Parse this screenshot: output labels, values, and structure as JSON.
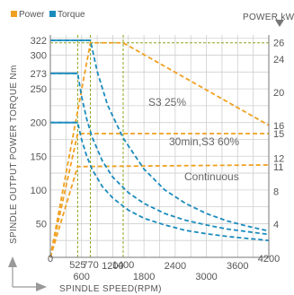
{
  "chart_data": {
    "type": "line",
    "legend": [
      {
        "name": "Power",
        "color": "#f0a020"
      },
      {
        "name": "Torque",
        "color": "#1a8bbd"
      }
    ],
    "legend_placement": "top-left",
    "xlabel": "SPINDLE SPEED(RPM)",
    "ylabel_left": "SPINDLE OUTPUT POWER TORQUE Nm",
    "ylabel_right": "POWER kW",
    "xlim": [
      0,
      4200
    ],
    "ylim_left": [
      0,
      330
    ],
    "ylim_right": [
      0,
      26.95
    ],
    "grid": true,
    "x_ticks": [
      {
        "v": 0,
        "label": "0",
        "color": "#555555"
      },
      {
        "v": 525,
        "label": "525",
        "color": "#8aa51e"
      },
      {
        "v": 600,
        "label": "600",
        "color": "#555555"
      },
      {
        "v": 770,
        "label": "770",
        "color": "#8aa51e"
      },
      {
        "v": 1200,
        "label": "1200",
        "color": "#555555"
      },
      {
        "v": 1400,
        "label": "1400",
        "color": "#8aa51e"
      },
      {
        "v": 1800,
        "label": "1800",
        "color": "#555555"
      },
      {
        "v": 2400,
        "label": "2400",
        "color": "#555555"
      },
      {
        "v": 3000,
        "label": "3000",
        "color": "#555555"
      },
      {
        "v": 3600,
        "label": "3600",
        "color": "#555555"
      },
      {
        "v": 4200,
        "label": "4200",
        "color": "#555555"
      }
    ],
    "y_ticks_left": [
      {
        "v": 50,
        "label": "50",
        "color": "#555555"
      },
      {
        "v": 100,
        "label": "100",
        "color": "#555555"
      },
      {
        "v": 150,
        "label": "150",
        "color": "#555555"
      },
      {
        "v": 200,
        "label": "200",
        "color": "#1888b8"
      },
      {
        "v": 250,
        "label": "250",
        "color": "#555555"
      },
      {
        "v": 273,
        "label": "273",
        "color": "#1888b8"
      },
      {
        "v": 300,
        "label": "300",
        "color": "#555555"
      },
      {
        "v": 322,
        "label": "322",
        "color": "#1888b8"
      }
    ],
    "y_ticks_right": [
      {
        "v": 4,
        "label": "4",
        "color": "#555555"
      },
      {
        "v": 8,
        "label": "8",
        "color": "#555555"
      },
      {
        "v": 11,
        "label": "11",
        "color": "#8aa51e"
      },
      {
        "v": 12,
        "label": "12",
        "color": "#555555"
      },
      {
        "v": 15,
        "label": "15",
        "color": "#8aa51e"
      },
      {
        "v": 16,
        "label": "16",
        "color": "#555555"
      },
      {
        "v": 20,
        "label": "20",
        "color": "#555555"
      },
      {
        "v": 24,
        "label": "24",
        "color": "#555555"
      },
      {
        "v": 26,
        "label": "26",
        "color": "#8aa51e"
      }
    ],
    "region_labels": [
      "S3 25%",
      "30min,S3 60%",
      "Continuous"
    ],
    "power_series": [
      {
        "name": "S3 25%",
        "x": [
          0,
          770,
          1400,
          4200
        ],
        "y": [
          0,
          26,
          26,
          16
        ]
      },
      {
        "name": "30min,S3 60%",
        "x": [
          0,
          525,
          4200
        ],
        "y": [
          0,
          15,
          15
        ]
      },
      {
        "name": "Continuous",
        "x": [
          0,
          525,
          4200
        ],
        "y": [
          0,
          11,
          11.2
        ]
      }
    ],
    "torque_series": [
      {
        "name": "S3 25%",
        "x": [
          0,
          770,
          900,
          1100,
          1400,
          1800,
          2200,
          2600,
          3000,
          3400,
          3800,
          4200
        ],
        "y": [
          322,
          322,
          276,
          226,
          177,
          131,
          100,
          80,
          65,
          54,
          46,
          39
        ]
      },
      {
        "name": "30min,S3 60%",
        "x": [
          0,
          525,
          600,
          700,
          800,
          1000,
          1200,
          1500,
          1800,
          2200,
          2600,
          3000,
          3400,
          3800,
          4200
        ],
        "y": [
          273,
          273,
          239,
          205,
          179,
          143,
          119,
          96,
          80,
          65,
          55,
          48,
          42,
          38,
          34
        ]
      },
      {
        "name": "Continuous",
        "x": [
          0,
          525,
          600,
          700,
          800,
          1000,
          1200,
          1500,
          1800,
          2200,
          2600,
          3000,
          3400,
          3800,
          4200
        ],
        "y": [
          200,
          200,
          175,
          150,
          131,
          105,
          88,
          70,
          58,
          48,
          40,
          35,
          31,
          28,
          25
        ]
      }
    ]
  }
}
